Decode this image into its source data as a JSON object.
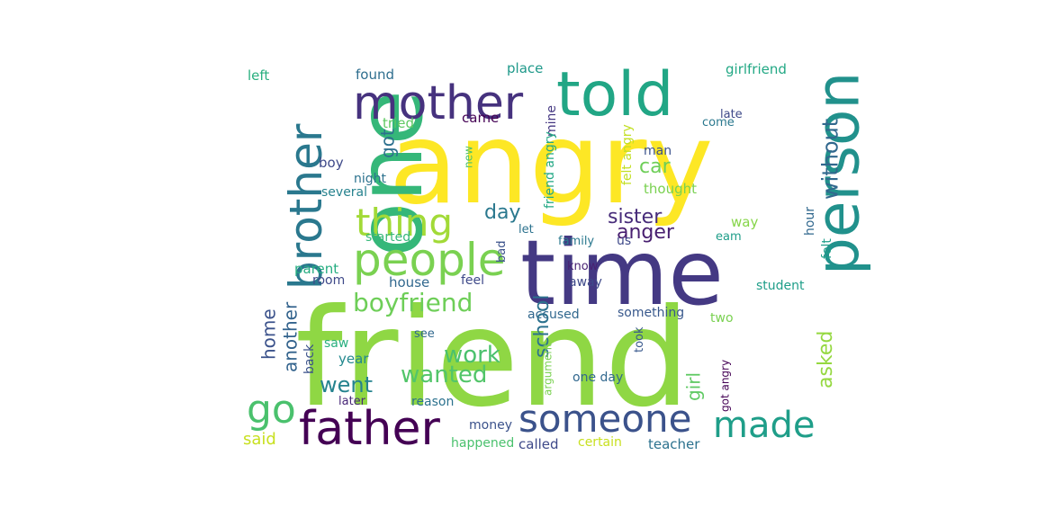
{
  "words": [
    {
      "text": "friend",
      "color": "#8fd744"
    },
    {
      "text": "angry",
      "color": "#fde725"
    },
    {
      "text": "time",
      "color": "#443983"
    },
    {
      "text": "one",
      "color": "#35b779"
    },
    {
      "text": "told",
      "color": "#21a685"
    },
    {
      "text": "mother",
      "color": "#46327e"
    },
    {
      "text": "person",
      "color": "#21918c"
    },
    {
      "text": "brother",
      "color": "#2a788e"
    },
    {
      "text": "people",
      "color": "#7ad151"
    },
    {
      "text": "thing",
      "color": "#a2da37"
    },
    {
      "text": "father",
      "color": "#440154"
    },
    {
      "text": "someone",
      "color": "#3b528b"
    },
    {
      "text": "made",
      "color": "#1f9e89"
    },
    {
      "text": "go",
      "color": "#4ac16d"
    },
    {
      "text": "boyfriend",
      "color": "#6ece58"
    },
    {
      "text": "wanted",
      "color": "#52c569"
    },
    {
      "text": "work",
      "color": "#4ac16d"
    },
    {
      "text": "went",
      "color": "#25838e"
    },
    {
      "text": "sister",
      "color": "#472c7a"
    },
    {
      "text": "anger",
      "color": "#481f70"
    },
    {
      "text": "car",
      "color": "#6ece58"
    },
    {
      "text": "day",
      "color": "#2a788e"
    },
    {
      "text": "without",
      "color": "#31688e"
    },
    {
      "text": "school",
      "color": "#2c728e"
    },
    {
      "text": "asked",
      "color": "#95d840"
    },
    {
      "text": "home",
      "color": "#3b528b"
    },
    {
      "text": "another",
      "color": "#33638d"
    },
    {
      "text": "got",
      "color": "#2d708e"
    },
    {
      "text": "girl",
      "color": "#5ec962"
    },
    {
      "text": "said",
      "color": "#c8e020"
    },
    {
      "text": "left",
      "color": "#29af7f"
    },
    {
      "text": "found",
      "color": "#2e6e8e"
    },
    {
      "text": "place",
      "color": "#1f998a"
    },
    {
      "text": "girlfriend",
      "color": "#22a884"
    },
    {
      "text": "mine",
      "color": "#453882"
    },
    {
      "text": "tried",
      "color": "#5ec962"
    },
    {
      "text": "came",
      "color": "#440154"
    },
    {
      "text": "late",
      "color": "#3e4989"
    },
    {
      "text": "come",
      "color": "#2a788e"
    },
    {
      "text": "friend angry",
      "color": "#22a884"
    },
    {
      "text": "felt angry",
      "color": "#c2df23"
    },
    {
      "text": "new",
      "color": "#4ac16d"
    },
    {
      "text": "man",
      "color": "#3b528b"
    },
    {
      "text": "boy",
      "color": "#3e4989"
    },
    {
      "text": "night",
      "color": "#2c728e"
    },
    {
      "text": "several",
      "color": "#26828e"
    },
    {
      "text": "thought",
      "color": "#7ad151"
    },
    {
      "text": "way",
      "color": "#86d549"
    },
    {
      "text": "let",
      "color": "#2c728e"
    },
    {
      "text": "started",
      "color": "#35b779"
    },
    {
      "text": "family",
      "color": "#2a788e"
    },
    {
      "text": "us",
      "color": "#3e4989"
    },
    {
      "text": "eam",
      "color": "#1f9e89"
    },
    {
      "text": "hour",
      "color": "#31688e"
    },
    {
      "text": "felt",
      "color": "#1f9e89"
    },
    {
      "text": "parent",
      "color": "#26ad81"
    },
    {
      "text": "bad",
      "color": "#3b528b"
    },
    {
      "text": "room",
      "color": "#3e4989"
    },
    {
      "text": "know",
      "color": "#482173"
    },
    {
      "text": "house",
      "color": "#31688e"
    },
    {
      "text": "feel",
      "color": "#3e4989"
    },
    {
      "text": "away",
      "color": "#3e4989"
    },
    {
      "text": "student",
      "color": "#1f9e89"
    },
    {
      "text": "accused",
      "color": "#31688e"
    },
    {
      "text": "something",
      "color": "#38588c"
    },
    {
      "text": "two",
      "color": "#7ad151"
    },
    {
      "text": "see",
      "color": "#31688e"
    },
    {
      "text": "took",
      "color": "#38588c"
    },
    {
      "text": "saw",
      "color": "#29af7f"
    },
    {
      "text": "back",
      "color": "#3b528b"
    },
    {
      "text": "year",
      "color": "#23888e"
    },
    {
      "text": "argument",
      "color": "#7ad151"
    },
    {
      "text": "one day",
      "color": "#31688e"
    },
    {
      "text": "got angry",
      "color": "#440154"
    },
    {
      "text": "later",
      "color": "#482878"
    },
    {
      "text": "reason",
      "color": "#2c728e"
    },
    {
      "text": "money",
      "color": "#3b528b"
    },
    {
      "text": "happened",
      "color": "#4ac16d"
    },
    {
      "text": "called",
      "color": "#3e4989"
    },
    {
      "text": "certain",
      "color": "#c8e020"
    },
    {
      "text": "teacher",
      "color": "#2c728e"
    }
  ]
}
